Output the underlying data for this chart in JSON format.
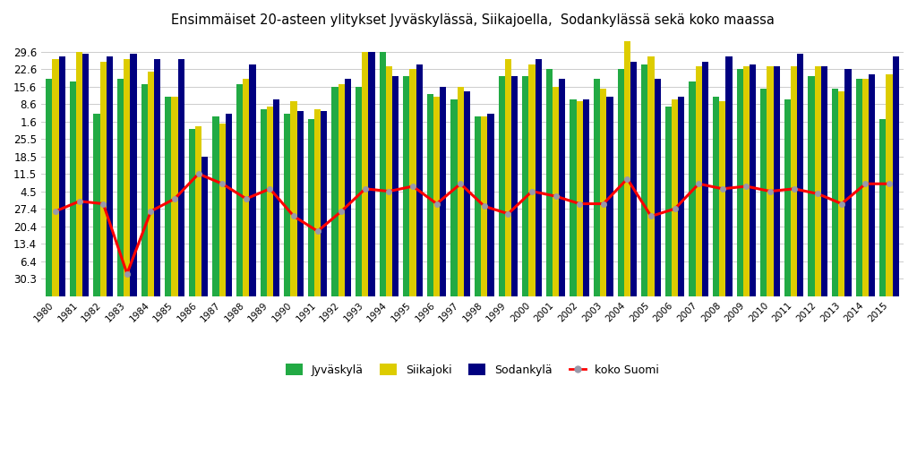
{
  "title": "Ensimmäiset 20-asteen ylitykset Jyväskylässä, Siikajoella,  Sodankylässä sekä koko maassa",
  "years": [
    1980,
    1981,
    1982,
    1983,
    1984,
    1985,
    1986,
    1987,
    1988,
    1989,
    1990,
    1991,
    1992,
    1993,
    1994,
    1995,
    1996,
    1997,
    1998,
    1999,
    2000,
    2001,
    2002,
    2003,
    2004,
    2005,
    2006,
    2007,
    2008,
    2009,
    2010,
    2011,
    2012,
    2013,
    2014,
    2015
  ],
  "jyvaskyla": [
    170,
    169,
    156,
    170,
    168,
    163,
    150,
    155,
    168,
    158,
    156,
    154,
    167,
    167,
    181,
    171,
    164,
    162,
    155,
    171,
    171,
    174,
    162,
    170,
    174,
    176,
    159,
    169,
    163,
    174,
    166,
    162,
    171,
    166,
    170,
    154
  ],
  "siikajoki": [
    178,
    181,
    177,
    178,
    173,
    163,
    151,
    152,
    170,
    159,
    161,
    158,
    168,
    181,
    175,
    174,
    163,
    167,
    155,
    178,
    176,
    167,
    161,
    166,
    185,
    179,
    162,
    175,
    161,
    175,
    175,
    175,
    175,
    165,
    170,
    172
  ],
  "sodankyla": [
    179,
    180,
    179,
    180,
    178,
    178,
    139,
    156,
    176,
    162,
    157,
    157,
    170,
    181,
    171,
    176,
    167,
    165,
    156,
    171,
    178,
    170,
    162,
    163,
    177,
    170,
    163,
    177,
    179,
    176,
    175,
    180,
    175,
    174,
    172,
    179
  ],
  "koko_suomi": [
    117,
    121,
    120,
    92,
    117,
    122,
    132,
    128,
    122,
    126,
    115,
    109,
    117,
    126,
    125,
    127,
    120,
    128,
    119,
    116,
    125,
    123,
    120,
    120,
    130,
    115,
    118,
    128,
    126,
    127,
    125,
    126,
    124,
    120,
    128,
    128
  ],
  "color_jyvaskyla": "#22aa44",
  "color_siikajoki": "#ddcc00",
  "color_sodankyla": "#000080",
  "color_koko_suomi": "#ff0000",
  "ytick_labels": [
    "29.6",
    "22.6",
    "15.6",
    "8.6",
    "1.6",
    "25.5",
    "18.5",
    "11.5",
    "4.5",
    "27.4",
    "20.4",
    "13.4",
    "6.4",
    "30.3"
  ],
  "ytick_values": [
    181,
    174,
    167,
    160,
    153,
    146,
    139,
    132,
    125,
    118,
    111,
    104,
    97,
    90
  ],
  "ymin": 83,
  "ymax": 188,
  "background_color": "#ffffff",
  "grid_color": "#cccccc",
  "marker_color": "#9999aa"
}
